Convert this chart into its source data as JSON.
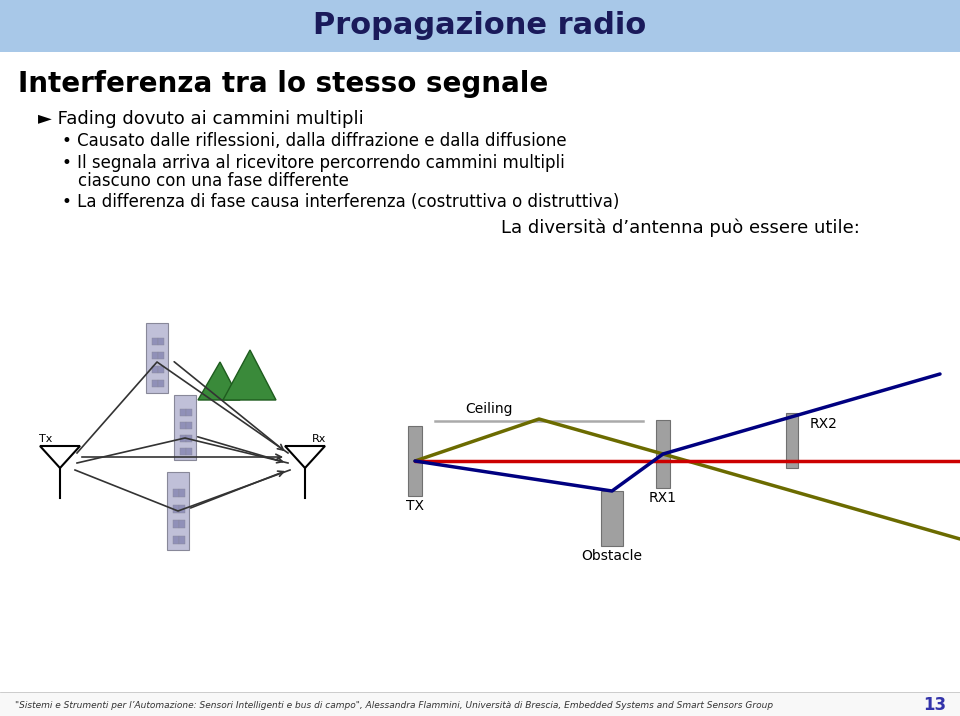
{
  "title": "Propagazione radio",
  "header_bg": "#A8C8E8",
  "slide_bg": "#FFFFFF",
  "slide_title": "Interferenza tra lo stesso segnale",
  "arrow_bullet": "► Fading dovuto ai cammini multipli",
  "bullet2": "• Causato dalle riflessioni, dalla diffrazione e dalla diffusione",
  "bullet3": "• Il segnala arriva al ricevitore percorrendo cammini multipli",
  "bullet3b": "ciascuno con una fase differente",
  "bullet4": "• La differenza di fase causa interferenza (costruttiva o distruttiva)",
  "diversity_text": "La diversità d’antenna può essere utile:",
  "footer_text": "\"Sistemi e Strumenti per l’Automazione: Sensori Intelligenti e bus di campo\", Alessandra Flammini, Università di Brescia, Embedded Systems and Smart Sensors Group",
  "page_number": "13",
  "ceiling_label": "Ceiling",
  "tx_label": "TX",
  "rx1_label": "RX1",
  "rx2_label": "RX2",
  "obstacle_label": "Obstacle",
  "line_olive": "#6B6B00",
  "line_red": "#CC0000",
  "line_blue": "#000080",
  "tx_ant_label": "Tx",
  "rx_ant_label": "Rx",
  "building_face": "#C0C0D8",
  "building_edge": "#888899",
  "window_face": "#9090B8",
  "pillar_face": "#A0A0A0",
  "pillar_edge": "#707070",
  "ceil_line_color": "#AAAAAA",
  "mountain_color": "#3A8A3A"
}
